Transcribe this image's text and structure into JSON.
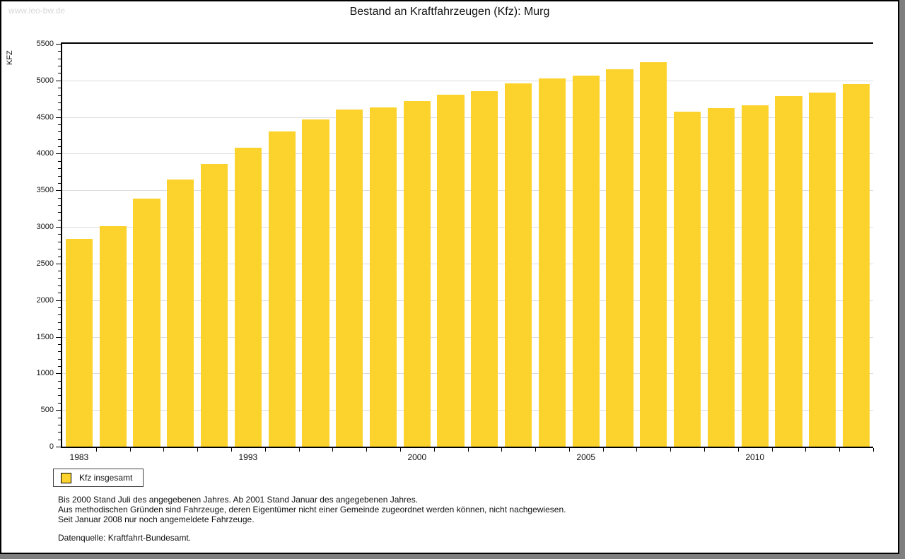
{
  "watermark": "www.leo-bw.de",
  "title": "Bestand an Kraftfahrzeugen (Kfz): Murg",
  "legend": {
    "label": "Kfz insgesamt"
  },
  "footnotes": {
    "line1": "Bis 2000 Stand Juli des angegebenen Jahres. Ab 2001 Stand Januar des angegebenen Jahres.",
    "line2": "Aus methodischen Gründen sind Fahrzeuge, deren Eigentümer nicht einer Gemeinde zugeordnet werden können, nicht nachgewiesen.",
    "line3": "Seit Januar 2008 nur noch angemeldete Fahrzeuge.",
    "source": "Datenquelle: Kraftfahrt-Bundesamt."
  },
  "chart_data": {
    "type": "bar",
    "title": "Bestand an Kraftfahrzeugen (Kfz): Murg",
    "xlabel": "",
    "ylabel": "KFZ",
    "ylim": [
      0,
      5500
    ],
    "ytick_major": 500,
    "ytick_minor": 100,
    "grid": "horizontal-major",
    "legend_position": "bottom-left",
    "bar_color": "#fcd32d",
    "gridline_color": "#dcdcdc",
    "categories": [
      "1983",
      "",
      "",
      "",
      "",
      "1993",
      "",
      "",
      "",
      "",
      "2000",
      "",
      "",
      "",
      "",
      "2005",
      "",
      "",
      "",
      "",
      "2010",
      "",
      "",
      ""
    ],
    "series": [
      {
        "name": "Kfz insgesamt",
        "values": [
          2840,
          3015,
          3385,
          3650,
          3860,
          4085,
          4300,
          4465,
          4600,
          4635,
          4715,
          4805,
          4850,
          4955,
          5025,
          5065,
          5150,
          5250,
          4575,
          4620,
          4660,
          4790,
          4830,
          4950
        ]
      }
    ]
  }
}
